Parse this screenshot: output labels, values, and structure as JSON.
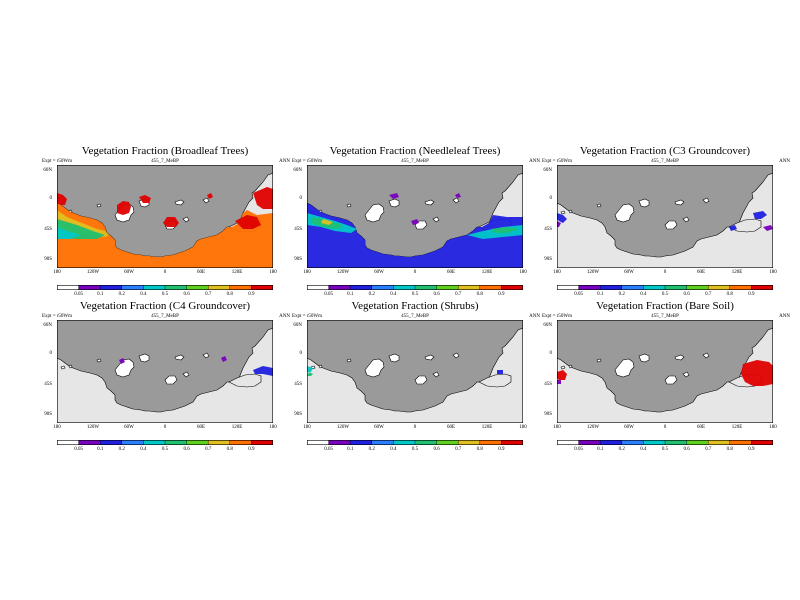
{
  "chart_data": [
    {
      "type": "heatmap",
      "title": "Vegetation Fraction (Broadleaf Trees)",
      "left_label": "Expt = r50Wm",
      "center_label": "455_7_MeBP",
      "right_label": "ANN",
      "lat_ticks": [
        "60N",
        "0",
        "45S",
        "90S"
      ],
      "lon_ticks": [
        "180",
        "120W",
        "60W",
        "0",
        "60E",
        "120E",
        "180"
      ],
      "colorbar_ticks": [
        "0.05",
        "0.1",
        "0.2",
        "0.4",
        "0.5",
        "0.6",
        "0.7",
        "0.8",
        "0.9"
      ],
      "colorbar_colors": [
        "#ffffff",
        "#7a00c0",
        "#2020e0",
        "#2a7fff",
        "#00c8c8",
        "#20c070",
        "#60d020",
        "#e0c020",
        "#ff7000",
        "#e00000"
      ]
    },
    {
      "type": "heatmap",
      "title": "Vegetation Fraction (Needleleaf Trees)",
      "left_label": "Expt = r50Wm",
      "center_label": "455_7_MeBP",
      "right_label": "ANN",
      "lat_ticks": [
        "60N",
        "0",
        "45S",
        "90S"
      ],
      "lon_ticks": [
        "180",
        "120W",
        "60W",
        "0",
        "60E",
        "120E",
        "180"
      ],
      "colorbar_ticks": [
        "0.05",
        "0.1",
        "0.2",
        "0.4",
        "0.5",
        "0.6",
        "0.7",
        "0.8",
        "0.9"
      ],
      "colorbar_colors": [
        "#ffffff",
        "#7a00c0",
        "#2020e0",
        "#2a7fff",
        "#00c8c8",
        "#20c070",
        "#60d020",
        "#e0c020",
        "#ff7000",
        "#e00000"
      ]
    },
    {
      "type": "heatmap",
      "title": "Vegetation Fraction (C3 Groundcover)",
      "left_label": "Expt = r50Wm",
      "center_label": "455_7_MeBP",
      "right_label": "ANN",
      "lat_ticks": [
        "60N",
        "0",
        "45S",
        "90S"
      ],
      "lon_ticks": [
        "180",
        "120W",
        "60W",
        "0",
        "60E",
        "120E",
        "180"
      ],
      "colorbar_ticks": [
        "0.05",
        "0.1",
        "0.2",
        "0.4",
        "0.5",
        "0.6",
        "0.7",
        "0.8",
        "0.9"
      ],
      "colorbar_colors": [
        "#ffffff",
        "#7a00c0",
        "#2020e0",
        "#2a7fff",
        "#00c8c8",
        "#20c070",
        "#60d020",
        "#e0c020",
        "#ff7000",
        "#e00000"
      ]
    },
    {
      "type": "heatmap",
      "title": "Vegetation Fraction (C4 Groundcover)",
      "left_label": "Expt = r50Wm",
      "center_label": "455_7_MeBP",
      "right_label": "ANN",
      "lat_ticks": [
        "60N",
        "0",
        "45S",
        "90S"
      ],
      "lon_ticks": [
        "180",
        "120W",
        "60W",
        "0",
        "60E",
        "120E",
        "180"
      ],
      "colorbar_ticks": [
        "0.05",
        "0.1",
        "0.2",
        "0.4",
        "0.5",
        "0.6",
        "0.7",
        "0.8",
        "0.9"
      ],
      "colorbar_colors": [
        "#ffffff",
        "#7a00c0",
        "#2020e0",
        "#2a7fff",
        "#00c8c8",
        "#20c070",
        "#60d020",
        "#e0c020",
        "#ff7000",
        "#e00000"
      ]
    },
    {
      "type": "heatmap",
      "title": "Vegetation Fraction (Shrubs)",
      "left_label": "Expt = r50Wm",
      "center_label": "455_7_MeBP",
      "right_label": "ANN",
      "lat_ticks": [
        "60N",
        "0",
        "45S",
        "90S"
      ],
      "lon_ticks": [
        "180",
        "120W",
        "60W",
        "0",
        "60E",
        "120E",
        "180"
      ],
      "colorbar_ticks": [
        "0.05",
        "0.1",
        "0.2",
        "0.4",
        "0.5",
        "0.6",
        "0.7",
        "0.8",
        "0.9"
      ],
      "colorbar_colors": [
        "#ffffff",
        "#7a00c0",
        "#2020e0",
        "#2a7fff",
        "#00c8c8",
        "#20c070",
        "#60d020",
        "#e0c020",
        "#ff7000",
        "#e00000"
      ]
    },
    {
      "type": "heatmap",
      "title": "Vegetation Fraction (Bare Soil)",
      "left_label": "Expt = r50Wm",
      "center_label": "455_7_MeBP",
      "right_label": "ANN",
      "lat_ticks": [
        "60N",
        "0",
        "45S",
        "90S"
      ],
      "lon_ticks": [
        "180",
        "120W",
        "60W",
        "0",
        "60E",
        "120E",
        "180"
      ],
      "colorbar_ticks": [
        "0.05",
        "0.1",
        "0.2",
        "0.4",
        "0.5",
        "0.6",
        "0.7",
        "0.8",
        "0.9"
      ],
      "colorbar_colors": [
        "#ffffff",
        "#7a00c0",
        "#2020e0",
        "#2a7fff",
        "#00c8c8",
        "#20c070",
        "#60d020",
        "#e0c020",
        "#ff7000",
        "#e00000"
      ]
    }
  ],
  "colors": {
    "land": "#9a9a9a",
    "ocean": "#e6e6e6",
    "high": "#e00000",
    "mid": "#ff7000",
    "low_blue": "#2020e0",
    "purple": "#7a00c0",
    "teal": "#00c8c8",
    "green": "#20c070",
    "yellow": "#e0c020"
  }
}
